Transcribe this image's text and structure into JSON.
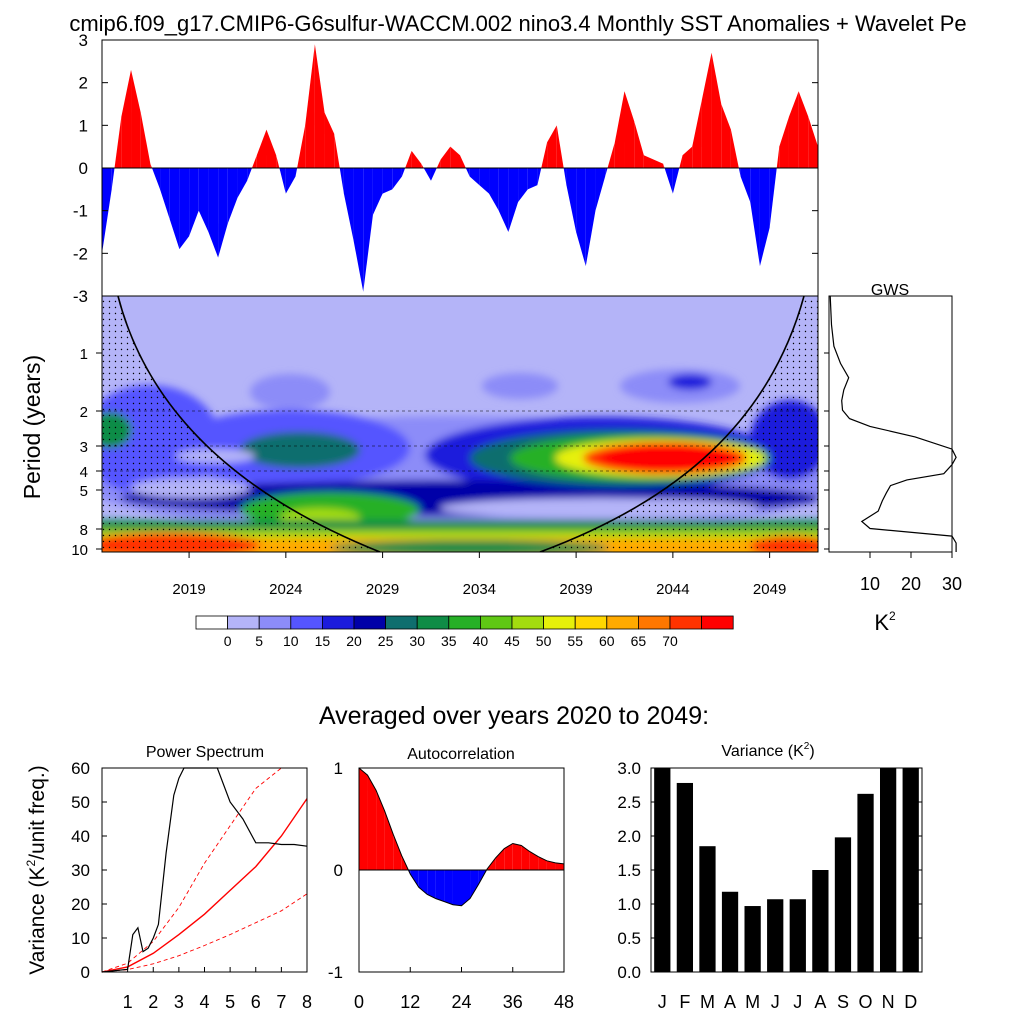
{
  "title": "cmip6.f09_g17.CMIP6-G6sulfur-WACCM.002 nino3.4 Monthly SST Anomalies + Wavelet Pe",
  "colors": {
    "pos": "#ff0000",
    "neg": "#0000ff",
    "line": "#000000",
    "signif": "#ff0000"
  },
  "chart_data": [
    {
      "id": "timeseries",
      "type": "area",
      "xlim": [
        2014.5,
        2051.5
      ],
      "ylim": [
        -3,
        3
      ],
      "yticks": [
        "3",
        "2",
        "1",
        "0",
        "-1",
        "-2",
        "-3"
      ],
      "x": [
        2014.5,
        2015,
        2015.5,
        2016,
        2016.5,
        2017,
        2017.5,
        2018,
        2018.5,
        2019,
        2019.5,
        2020,
        2020.5,
        2021,
        2021.5,
        2022,
        2022.5,
        2023,
        2023.5,
        2024,
        2024.5,
        2025,
        2025.5,
        2026,
        2026.5,
        2027,
        2027.5,
        2028,
        2028.5,
        2029,
        2029.5,
        2030,
        2030.5,
        2031,
        2031.5,
        2032,
        2032.5,
        2033,
        2033.5,
        2034,
        2034.5,
        2035,
        2035.5,
        2036,
        2036.5,
        2037,
        2037.5,
        2038,
        2038.5,
        2039,
        2039.5,
        2040,
        2040.5,
        2041,
        2041.5,
        2042,
        2042.5,
        2043,
        2043.5,
        2044,
        2044.5,
        2045,
        2045.5,
        2046,
        2046.5,
        2047,
        2047.5,
        2048,
        2048.5,
        2049,
        2049.5,
        2050,
        2050.5,
        2051,
        2051.5
      ],
      "y": [
        -2.0,
        -0.5,
        1.2,
        2.3,
        1.3,
        0.1,
        -0.5,
        -1.2,
        -1.9,
        -1.6,
        -1.0,
        -1.5,
        -2.1,
        -1.3,
        -0.7,
        -0.3,
        0.3,
        0.9,
        0.3,
        -0.6,
        -0.2,
        1.0,
        2.9,
        1.3,
        0.8,
        -0.6,
        -1.7,
        -2.9,
        -1.1,
        -0.6,
        -0.5,
        -0.2,
        0.4,
        0.1,
        -0.3,
        0.2,
        0.5,
        0.3,
        -0.2,
        -0.4,
        -0.6,
        -1.0,
        -1.5,
        -0.8,
        -0.5,
        -0.4,
        0.6,
        1.0,
        -0.4,
        -1.5,
        -2.3,
        -1.0,
        -0.2,
        0.6,
        1.8,
        1.1,
        0.3,
        0.2,
        0.1,
        -0.6,
        0.3,
        0.5,
        1.6,
        2.7,
        1.5,
        0.9,
        -0.2,
        -0.8,
        -2.3,
        -1.4,
        0.5,
        1.2,
        1.8,
        1.2,
        0.5
      ],
      "xticks": [
        "2019",
        "2024",
        "2029",
        "2034",
        "2039",
        "2044",
        "2049"
      ]
    },
    {
      "id": "wavelet",
      "type": "heatmap",
      "ylabel": "Period (years)",
      "yticks": [
        "1",
        "2",
        "3",
        "4",
        "5",
        "8",
        "10"
      ],
      "xticks": [
        "2019",
        "2024",
        "2029",
        "2034",
        "2039",
        "2044",
        "2049"
      ],
      "colorbar_ticks": [
        "0",
        "5",
        "10",
        "15",
        "20",
        "25",
        "30",
        "35",
        "40",
        "45",
        "50",
        "55",
        "60",
        "65",
        "70"
      ],
      "colorbar_colors": [
        "#ffffff",
        "#b4b4f8",
        "#8c8cf8",
        "#5555ff",
        "#1b1bdc",
        "#0000a8",
        "#0f6e6e",
        "#0f8c46",
        "#26b026",
        "#5fc814",
        "#a3dc0f",
        "#e6f00a",
        "#ffd700",
        "#ffaa00",
        "#ff7700",
        "#ff3300",
        "#ff0000"
      ]
    },
    {
      "id": "gws",
      "type": "line",
      "title": "GWS",
      "xlabel": "K",
      "xlabel_sup": "2",
      "xlim": [
        0,
        30
      ],
      "xticks": [
        "10",
        "20",
        "30"
      ],
      "y_period": [
        0.5,
        0.7,
        0.9,
        1.1,
        1.3,
        1.5,
        1.7,
        1.9,
        2.1,
        2.3,
        2.6,
        3.0,
        3.3,
        3.6,
        4.0,
        4.3,
        4.6,
        5.0,
        5.5,
        6.2,
        7.0,
        7.6,
        8.3,
        9.0,
        10.0
      ],
      "values": [
        0.3,
        0.6,
        1.2,
        2.8,
        4.8,
        3.6,
        3.1,
        3.3,
        5.0,
        10,
        21,
        30,
        32,
        30,
        28,
        19,
        15,
        14,
        13,
        12,
        8,
        10,
        30,
        31,
        31
      ]
    },
    {
      "id": "power_spectrum",
      "type": "line",
      "title": "Power Spectrum",
      "ylabel": "Variance (K",
      "ylabel_sup": "2",
      "ylabel_tail": "/unit freq.)",
      "xlim": [
        0,
        8
      ],
      "ylim": [
        0,
        60
      ],
      "xticks": [
        "1",
        "2",
        "3",
        "4",
        "5",
        "6",
        "7",
        "8"
      ],
      "yticks": [
        "0",
        "10",
        "20",
        "30",
        "40",
        "50",
        "60"
      ],
      "x": [
        0.0,
        1.0,
        1.2,
        1.4,
        1.6,
        1.8,
        2.0,
        2.2,
        2.5,
        2.8,
        3.0,
        3.2,
        3.5,
        4.0,
        4.5,
        5.0,
        5.5,
        6.0,
        6.5,
        7.0,
        7.5,
        8.0
      ],
      "values": [
        0,
        0.8,
        11,
        13,
        6,
        7,
        10,
        14,
        35,
        52,
        57,
        62,
        62,
        62,
        62,
        50,
        45,
        38,
        38,
        37.5,
        37.5,
        37
      ],
      "signif_x": [
        0,
        1,
        2,
        3,
        4,
        5,
        6,
        7,
        8
      ],
      "signif_mean": [
        0,
        1.5,
        5.5,
        11,
        17,
        24,
        31,
        40,
        51
      ],
      "signif_upper": [
        0,
        2.6,
        9,
        19,
        32,
        43,
        54,
        62,
        64
      ],
      "signif_lower": [
        0,
        0.7,
        2.4,
        4.8,
        7.8,
        11,
        14.5,
        18,
        23
      ]
    },
    {
      "id": "autocorrelation",
      "type": "area",
      "title": "Autocorrelation",
      "xlim": [
        0,
        48
      ],
      "ylim": [
        -1,
        1
      ],
      "xticks": [
        "0",
        "12",
        "24",
        "36",
        "48"
      ],
      "yticks": [
        "1",
        "0",
        "-1"
      ],
      "x": [
        0,
        2,
        4,
        6,
        8,
        10,
        12,
        14,
        16,
        18,
        20,
        22,
        24,
        26,
        28,
        30,
        32,
        34,
        36,
        38,
        40,
        42,
        44,
        46,
        48
      ],
      "values": [
        1.0,
        0.93,
        0.78,
        0.58,
        0.35,
        0.14,
        -0.04,
        -0.17,
        -0.24,
        -0.28,
        -0.31,
        -0.34,
        -0.35,
        -0.28,
        -0.14,
        0.01,
        0.12,
        0.21,
        0.26,
        0.24,
        0.18,
        0.13,
        0.09,
        0.07,
        0.06
      ]
    },
    {
      "id": "variance",
      "type": "bar",
      "title": "Variance (K",
      "title_sup": "2",
      "title_tail": ")",
      "ylim": [
        0,
        3.0
      ],
      "yticks": [
        "3.0",
        "2.5",
        "2.0",
        "1.5",
        "1.0",
        "0.5",
        "0.0"
      ],
      "categories": [
        "J",
        "F",
        "M",
        "A",
        "M",
        "J",
        "J",
        "A",
        "S",
        "O",
        "N",
        "D"
      ],
      "values": [
        3.0,
        2.78,
        1.85,
        1.18,
        0.97,
        1.07,
        1.07,
        1.5,
        1.98,
        2.62,
        3.0,
        3.0
      ]
    }
  ],
  "subtitle": "Averaged over years 2020 to 2049:"
}
